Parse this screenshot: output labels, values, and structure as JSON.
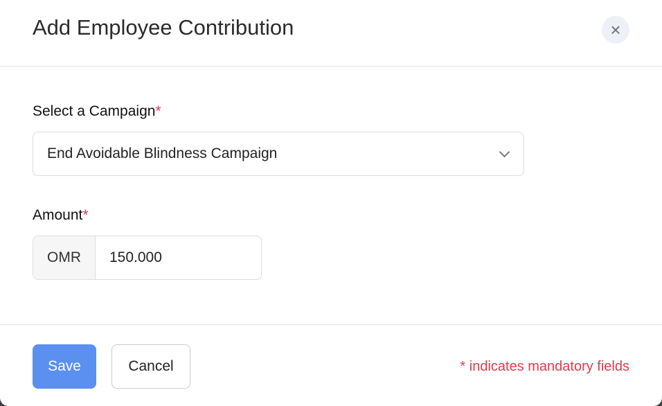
{
  "dialog": {
    "title": "Add Employee Contribution",
    "close_icon": "×"
  },
  "campaign": {
    "label": "Select a Campaign",
    "required": "*",
    "value": "End Avoidable Blindness Campaign"
  },
  "amount": {
    "label": "Amount",
    "required": "*",
    "currency": "OMR",
    "value": "150.000"
  },
  "footer": {
    "save_label": "Save",
    "cancel_label": "Cancel",
    "note": "* indicates mandatory fields"
  },
  "colors": {
    "primary": "#5b8ff0",
    "required": "#e5394a"
  }
}
